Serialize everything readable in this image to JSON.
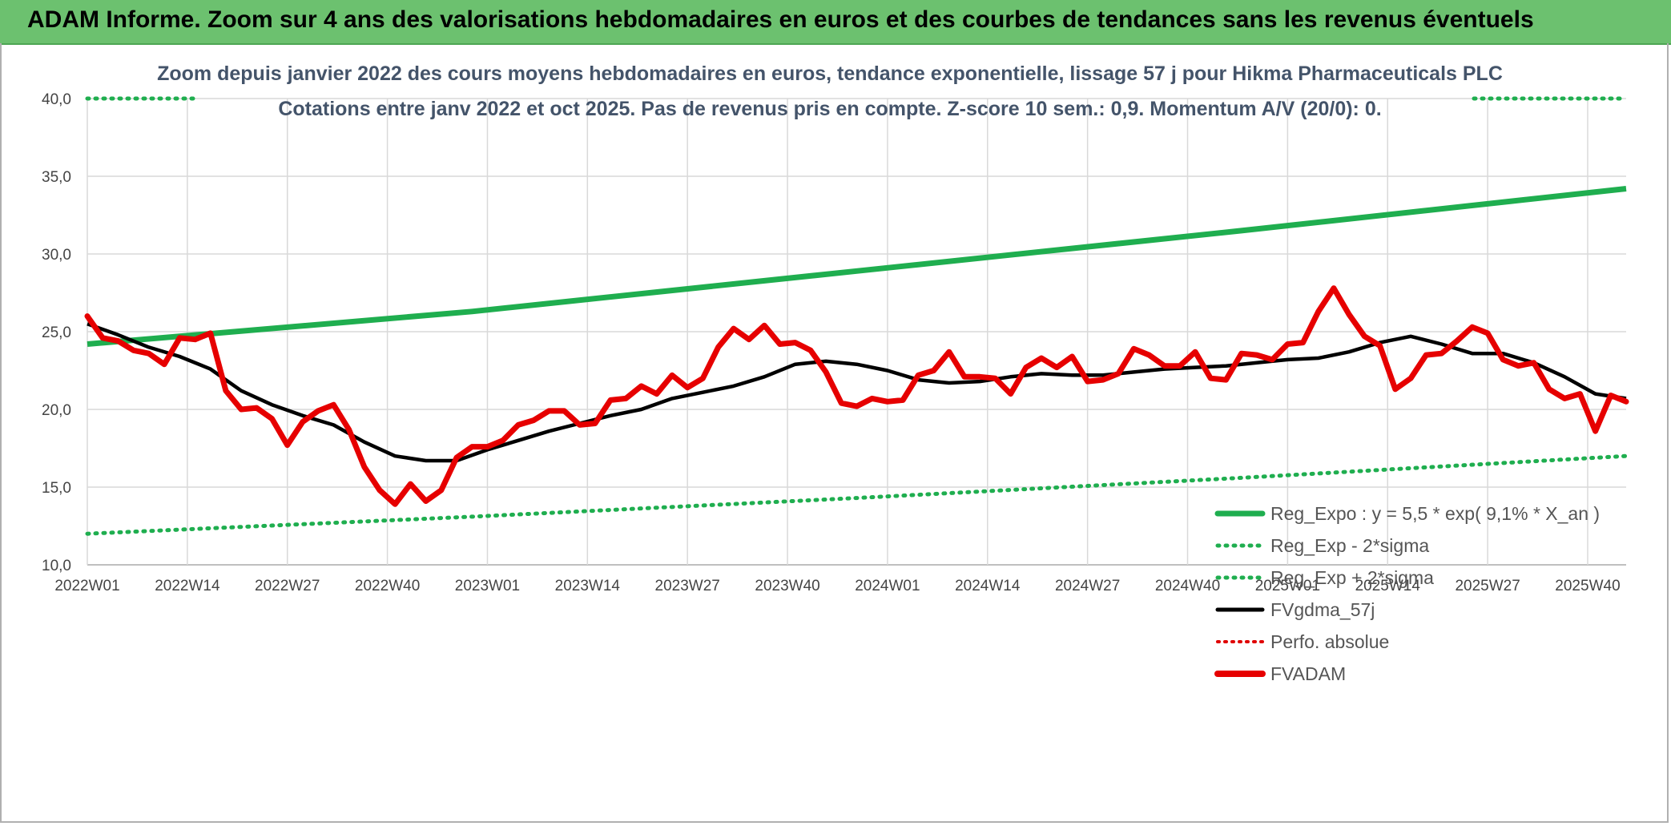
{
  "banner": {
    "title": "ADAM Informe. Zoom sur 4 ans des valorisations hebdomadaires en euros et des courbes de tendances sans les revenus éventuels"
  },
  "colors": {
    "banner": "#6cc16f",
    "regression": "#1fae4f",
    "bands": "#1fae4f",
    "smoothing": "#000000",
    "perf": "#e00000",
    "price": "#e60000",
    "title": "#44546a",
    "grid": "#d9d9d9"
  },
  "chart_data": {
    "type": "line",
    "title": "Zoom depuis janvier 2022 des cours moyens hebdomadaires en euros, tendance exponentielle, lissage 57 j pour Hikma Pharmaceuticals PLC",
    "subtitle": "Cotations entre janv 2022 et oct 2025. Pas de revenus pris en compte. Z-score 10 sem.: 0,9. Momentum A/V (20/0): 0.",
    "xlabel": "",
    "ylabel": "",
    "ylim": [
      10,
      40
    ],
    "yticks": [
      "10,0",
      "15,0",
      "20,0",
      "25,0",
      "30,0",
      "35,0",
      "40,0"
    ],
    "xticks": [
      "2022W01",
      "2022W14",
      "2022W27",
      "2022W40",
      "2023W01",
      "2023W14",
      "2023W27",
      "2023W40",
      "2024W01",
      "2024W14",
      "2024W27",
      "2024W40",
      "2025W01",
      "2025W14",
      "2025W27",
      "2025W40"
    ],
    "x_range_weeks": [
      0,
      200
    ],
    "grid": true,
    "legend_position": "bottom-right",
    "legend": [
      {
        "label": "Reg_Expo : y = 5,5 * exp( 9,1% *  X_an )",
        "style": "solid-green"
      },
      {
        "label": "Reg_Exp - 2*sigma",
        "style": "dotted-green"
      },
      {
        "label": "Reg_Exp + 2*sigma",
        "style": "dotted-green"
      },
      {
        "label": "FVgdma_57j",
        "style": "solid-black"
      },
      {
        "label": "Perfo. absolue",
        "style": "dotted-red"
      },
      {
        "label": "FVADAM",
        "style": "solid-red"
      }
    ],
    "series": [
      {
        "name": "Reg_Expo : y = 5,5 * exp( 9,1% *  X_an )",
        "x": [
          0,
          50,
          100,
          150,
          200
        ],
        "values": [
          24.2,
          26.3,
          28.9,
          31.5,
          34.2
        ]
      },
      {
        "name": "Reg_Exp - 2*sigma",
        "x": [
          0,
          50,
          100,
          150,
          200
        ],
        "values": [
          12.0,
          13.1,
          14.3,
          15.6,
          17.0
        ]
      },
      {
        "name": "Reg_Exp + 2*sigma",
        "x": [
          0,
          200
        ],
        "values": [
          40.0,
          40.0
        ]
      },
      {
        "name": "FVgdma_57j",
        "x": [
          0,
          4,
          8,
          12,
          16,
          20,
          24,
          28,
          32,
          36,
          40,
          44,
          48,
          52,
          56,
          60,
          64,
          68,
          72,
          76,
          80,
          84,
          88,
          92,
          96,
          100,
          104,
          108,
          112,
          116,
          120,
          124,
          128,
          132,
          136,
          140,
          144,
          148,
          152,
          156,
          160,
          164,
          168,
          172,
          176,
          180,
          184,
          188,
          192,
          196,
          200
        ],
        "values": [
          25.5,
          24.8,
          24.0,
          23.4,
          22.6,
          21.2,
          20.3,
          19.6,
          19.0,
          17.9,
          17.0,
          16.7,
          16.7,
          17.4,
          18.0,
          18.6,
          19.1,
          19.6,
          20.0,
          20.7,
          21.1,
          21.5,
          22.1,
          22.9,
          23.1,
          22.9,
          22.5,
          21.9,
          21.7,
          21.8,
          22.1,
          22.3,
          22.2,
          22.2,
          22.4,
          22.6,
          22.7,
          22.8,
          23.0,
          23.2,
          23.3,
          23.7,
          24.3,
          24.7,
          24.2,
          23.6,
          23.6,
          23.0,
          22.1,
          21.0,
          20.7
        ]
      },
      {
        "name": "FVADAM",
        "x": [
          0,
          2,
          4,
          6,
          8,
          10,
          12,
          14,
          16,
          18,
          20,
          22,
          24,
          26,
          28,
          30,
          32,
          34,
          36,
          38,
          40,
          42,
          44,
          46,
          48,
          50,
          52,
          54,
          56,
          58,
          60,
          62,
          64,
          66,
          68,
          70,
          72,
          74,
          76,
          78,
          80,
          82,
          84,
          86,
          88,
          90,
          92,
          94,
          96,
          98,
          100,
          102,
          104,
          106,
          108,
          110,
          112,
          114,
          116,
          118,
          120,
          122,
          124,
          126,
          128,
          130,
          132,
          134,
          136,
          138,
          140,
          142,
          144,
          146,
          148,
          150,
          152,
          154,
          156,
          158,
          160,
          162,
          164,
          166,
          168,
          170,
          172,
          174,
          176,
          178,
          180,
          182,
          184,
          186,
          188,
          190,
          192,
          194,
          196,
          198,
          200
        ],
        "values": [
          26.0,
          24.6,
          24.4,
          23.8,
          23.6,
          22.9,
          24.6,
          24.5,
          24.9,
          21.2,
          20.0,
          20.1,
          19.4,
          17.7,
          19.2,
          19.9,
          20.3,
          18.7,
          16.3,
          14.8,
          13.9,
          15.2,
          14.1,
          14.8,
          16.9,
          17.6,
          17.6,
          18.0,
          19.0,
          19.3,
          19.9,
          19.9,
          19.0,
          19.1,
          20.6,
          20.7,
          21.5,
          21.0,
          22.2,
          21.4,
          22.0,
          24.0,
          25.2,
          24.5,
          25.4,
          24.2,
          24.3,
          23.8,
          22.4,
          20.4,
          20.2,
          20.7,
          20.5,
          20.6,
          22.2,
          22.5,
          23.7,
          22.1,
          22.1,
          22.0,
          21.0,
          22.7,
          23.3,
          22.7,
          23.4,
          21.8,
          21.9,
          22.3,
          23.9,
          23.5,
          22.8,
          22.8,
          23.7,
          22.0,
          21.9,
          23.6,
          23.5,
          23.2,
          24.2,
          24.3,
          26.3,
          27.8,
          26.1,
          24.7,
          24.1,
          21.3,
          22.0,
          23.5,
          23.6,
          24.4,
          25.3,
          24.9,
          23.2,
          22.8,
          23.0,
          21.3,
          20.7,
          21.0,
          18.6,
          20.9,
          20.5
        ]
      }
    ]
  }
}
